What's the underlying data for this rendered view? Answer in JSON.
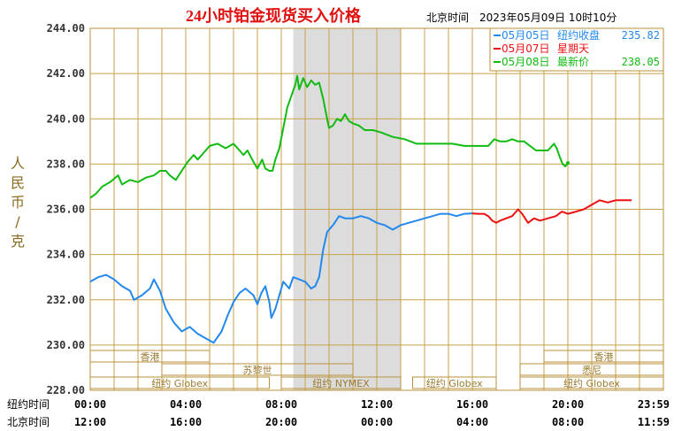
{
  "chart_data": {
    "type": "line",
    "title": "24小时铂金现货买入价格",
    "subtitle": "北京时间　2023年05月09日 10时10分",
    "ylabel": "人民币/克",
    "y_ticks": [
      "244.00",
      "242.00",
      "240.00",
      "238.00",
      "236.00",
      "234.00",
      "232.00",
      "230.00",
      "228.00"
    ],
    "ylim": [
      228,
      244
    ],
    "xlim": [
      0,
      1440
    ],
    "x_unit": "minutes since 00:00 New York time",
    "x_row1_label": "纽约时间",
    "x_row2_label": "北京时间",
    "x_ticks_ny": [
      "00:00",
      "04:00",
      "08:00",
      "12:00",
      "16:00",
      "20:00",
      "23:59"
    ],
    "x_ticks_bj": [
      "12:00",
      "16:00",
      "20:00",
      "00:00",
      "04:00",
      "08:00",
      "11:59"
    ],
    "grid": true,
    "legend_position": "top-right",
    "sessions": [
      {
        "label": "香港",
        "start": 0,
        "end": 300,
        "row": 0
      },
      {
        "label": "苏黎世",
        "start": 180,
        "end": 660,
        "row": 1
      },
      {
        "label": "纽约 Globex",
        "start": 0,
        "end": 450,
        "row": 2
      },
      {
        "label": "纽约 NYMEX",
        "start": 480,
        "end": 780,
        "row": 2
      },
      {
        "label": "纽约 Globex",
        "start": 810,
        "end": 1020,
        "row": 2
      },
      {
        "label": "香港",
        "start": 1140,
        "end": 1440,
        "row": 0
      },
      {
        "label": "悉尼",
        "start": 1080,
        "end": 1440,
        "row": 1
      },
      {
        "label": "纽约 Globex",
        "start": 1080,
        "end": 1440,
        "row": 2
      }
    ],
    "highlight_band": [
      510,
      780
    ],
    "series": [
      {
        "name": "05月05日",
        "legend_note": "纽约收盘",
        "legend_value": "235.82",
        "color": "#2288EE",
        "points": [
          [
            0,
            232.8
          ],
          [
            20,
            233.0
          ],
          [
            40,
            233.1
          ],
          [
            60,
            232.9
          ],
          [
            80,
            232.6
          ],
          [
            100,
            232.4
          ],
          [
            110,
            232.0
          ],
          [
            130,
            232.2
          ],
          [
            150,
            232.5
          ],
          [
            160,
            232.9
          ],
          [
            175,
            232.4
          ],
          [
            190,
            231.6
          ],
          [
            210,
            231.0
          ],
          [
            230,
            230.6
          ],
          [
            250,
            230.8
          ],
          [
            270,
            230.5
          ],
          [
            290,
            230.3
          ],
          [
            310,
            230.1
          ],
          [
            330,
            230.6
          ],
          [
            345,
            231.3
          ],
          [
            360,
            231.9
          ],
          [
            375,
            232.3
          ],
          [
            390,
            232.5
          ],
          [
            410,
            232.2
          ],
          [
            420,
            231.8
          ],
          [
            430,
            232.3
          ],
          [
            440,
            232.6
          ],
          [
            450,
            231.9
          ],
          [
            455,
            231.2
          ],
          [
            465,
            231.6
          ],
          [
            475,
            232.2
          ],
          [
            485,
            232.8
          ],
          [
            500,
            232.5
          ],
          [
            510,
            233.0
          ],
          [
            525,
            232.9
          ],
          [
            540,
            232.8
          ],
          [
            555,
            232.5
          ],
          [
            565,
            232.6
          ],
          [
            575,
            233.0
          ],
          [
            585,
            234.2
          ],
          [
            595,
            235.0
          ],
          [
            610,
            235.3
          ],
          [
            625,
            235.7
          ],
          [
            640,
            235.6
          ],
          [
            660,
            235.6
          ],
          [
            680,
            235.7
          ],
          [
            700,
            235.6
          ],
          [
            720,
            235.4
          ],
          [
            740,
            235.3
          ],
          [
            760,
            235.1
          ],
          [
            780,
            235.3
          ],
          [
            800,
            235.4
          ],
          [
            820,
            235.5
          ],
          [
            840,
            235.6
          ],
          [
            860,
            235.7
          ],
          [
            880,
            235.8
          ],
          [
            900,
            235.8
          ],
          [
            920,
            235.7
          ],
          [
            940,
            235.8
          ],
          [
            960,
            235.82
          ]
        ]
      },
      {
        "name": "05月07日",
        "legend_note": "星期天",
        "legend_value": "",
        "color": "#EE1111",
        "points": [
          [
            960,
            235.82
          ],
          [
            975,
            235.8
          ],
          [
            990,
            235.8
          ],
          [
            1000,
            235.7
          ],
          [
            1010,
            235.5
          ],
          [
            1020,
            235.4
          ],
          [
            1030,
            235.5
          ],
          [
            1045,
            235.6
          ],
          [
            1060,
            235.7
          ],
          [
            1075,
            236.0
          ],
          [
            1085,
            235.8
          ],
          [
            1100,
            235.4
          ],
          [
            1115,
            235.6
          ],
          [
            1130,
            235.5
          ],
          [
            1150,
            235.6
          ],
          [
            1170,
            235.7
          ],
          [
            1185,
            235.9
          ],
          [
            1200,
            235.8
          ],
          [
            1220,
            235.9
          ],
          [
            1240,
            236.0
          ],
          [
            1260,
            236.2
          ],
          [
            1280,
            236.4
          ],
          [
            1300,
            236.3
          ],
          [
            1320,
            236.4
          ],
          [
            1340,
            236.4
          ],
          [
            1360,
            236.4
          ]
        ]
      },
      {
        "name": "05月08日",
        "legend_note": "最新价",
        "legend_value": "238.05",
        "color": "#11BB11",
        "points": [
          [
            0,
            236.5
          ],
          [
            15,
            236.7
          ],
          [
            30,
            237.0
          ],
          [
            50,
            237.2
          ],
          [
            70,
            237.5
          ],
          [
            80,
            237.1
          ],
          [
            100,
            237.3
          ],
          [
            120,
            237.2
          ],
          [
            140,
            237.4
          ],
          [
            160,
            237.5
          ],
          [
            175,
            237.7
          ],
          [
            190,
            237.7
          ],
          [
            200,
            237.5
          ],
          [
            215,
            237.3
          ],
          [
            230,
            237.7
          ],
          [
            245,
            238.1
          ],
          [
            260,
            238.4
          ],
          [
            270,
            238.2
          ],
          [
            285,
            238.5
          ],
          [
            300,
            238.8
          ],
          [
            320,
            238.9
          ],
          [
            340,
            238.7
          ],
          [
            360,
            238.9
          ],
          [
            375,
            238.6
          ],
          [
            385,
            238.4
          ],
          [
            395,
            238.6
          ],
          [
            410,
            238.1
          ],
          [
            420,
            237.8
          ],
          [
            432,
            238.2
          ],
          [
            440,
            237.8
          ],
          [
            450,
            237.7
          ],
          [
            458,
            237.7
          ],
          [
            465,
            238.2
          ],
          [
            475,
            238.7
          ],
          [
            485,
            239.6
          ],
          [
            495,
            240.5
          ],
          [
            505,
            241.0
          ],
          [
            515,
            241.5
          ],
          [
            520,
            241.9
          ],
          [
            525,
            241.3
          ],
          [
            535,
            241.8
          ],
          [
            545,
            241.4
          ],
          [
            555,
            241.7
          ],
          [
            565,
            241.5
          ],
          [
            575,
            241.6
          ],
          [
            585,
            240.9
          ],
          [
            595,
            240.0
          ],
          [
            600,
            239.6
          ],
          [
            610,
            239.7
          ],
          [
            620,
            240.0
          ],
          [
            630,
            239.9
          ],
          [
            640,
            240.2
          ],
          [
            650,
            239.9
          ],
          [
            660,
            239.8
          ],
          [
            675,
            239.7
          ],
          [
            690,
            239.5
          ],
          [
            710,
            239.5
          ],
          [
            730,
            239.4
          ],
          [
            760,
            239.2
          ],
          [
            790,
            239.1
          ],
          [
            820,
            238.9
          ],
          [
            850,
            238.9
          ],
          [
            880,
            238.9
          ],
          [
            910,
            238.9
          ],
          [
            940,
            238.8
          ],
          [
            970,
            238.8
          ],
          [
            1000,
            238.8
          ],
          [
            1015,
            239.1
          ],
          [
            1030,
            239.0
          ],
          [
            1045,
            239.0
          ],
          [
            1060,
            239.1
          ],
          [
            1075,
            239.0
          ],
          [
            1090,
            239.0
          ],
          [
            1105,
            238.8
          ],
          [
            1120,
            238.6
          ],
          [
            1135,
            238.6
          ],
          [
            1150,
            238.6
          ],
          [
            1165,
            238.9
          ],
          [
            1172,
            238.7
          ],
          [
            1180,
            238.3
          ],
          [
            1187,
            238.0
          ],
          [
            1194,
            237.9
          ],
          [
            1200,
            238.05
          ]
        ]
      }
    ]
  }
}
